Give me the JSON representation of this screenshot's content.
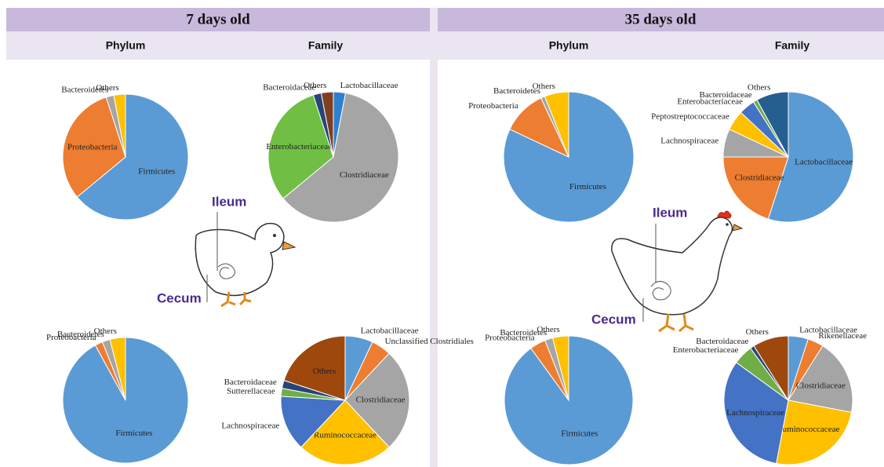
{
  "panels": [
    {
      "title": "7 days old",
      "columns": [
        "Phylum",
        "Family"
      ],
      "labels": [
        "Ileum",
        "Cecum"
      ]
    },
    {
      "title": "35 days old",
      "columns": [
        "Phylum",
        "Family"
      ],
      "labels": [
        "Ileum",
        "Cecum"
      ]
    }
  ],
  "chart_data": [
    {
      "type": "pie",
      "categories": [
        "Firmicutes",
        "Proteobacteria",
        "Bacteroidetes",
        "Others"
      ],
      "values": [
        64,
        31,
        2,
        3
      ],
      "colors": [
        "#5b9bd5",
        "#ed7d31",
        "#a5a5a5",
        "#ffc000"
      ]
    },
    {
      "type": "pie",
      "categories": [
        "Lactobacillaceae",
        "Clostridiaceae",
        "Enterobacteriaceae",
        "Bacteroidaceae",
        "Others"
      ],
      "values": [
        3,
        61,
        31,
        2,
        3
      ],
      "colors": [
        "#2f7fd0",
        "#a5a5a5",
        "#70bf44",
        "#264478",
        "#7f3f1f"
      ]
    },
    {
      "type": "pie",
      "categories": [
        "Firmicutes",
        "Proteobacteria",
        "Bacteroidetes",
        "Others"
      ],
      "values": [
        92,
        2,
        2,
        4
      ],
      "colors": [
        "#5b9bd5",
        "#ed7d31",
        "#a5a5a5",
        "#ffc000"
      ]
    },
    {
      "type": "pie",
      "categories": [
        "Lactobacillaceae",
        "Unclassified Clostridiales",
        "Clostridiaceae",
        "Ruminococcaceae",
        "Lachnospiraceae",
        "Sutterellaceae",
        "Bacteroidaceae",
        "Others"
      ],
      "values": [
        7,
        5,
        26,
        24,
        14,
        2,
        2,
        20
      ],
      "colors": [
        "#5b9bd5",
        "#ed7d31",
        "#a5a5a5",
        "#ffc000",
        "#4472c4",
        "#70ad47",
        "#264478",
        "#9e480e"
      ]
    },
    {
      "type": "pie",
      "categories": [
        "Firmicutes",
        "Proteobacteria",
        "Bacteroidetes",
        "Others"
      ],
      "values": [
        82,
        11,
        1,
        6
      ],
      "colors": [
        "#5b9bd5",
        "#ed7d31",
        "#a5a5a5",
        "#ffc000"
      ]
    },
    {
      "type": "pie",
      "categories": [
        "Lactobacillaceae",
        "Clostridiaceae",
        "Lachnospiraceae",
        "Peptostreptococcaceae",
        "Enterobacteriaceae",
        "Bacteroidaceae",
        "Others"
      ],
      "values": [
        55,
        20,
        7,
        5,
        4,
        1,
        8
      ],
      "colors": [
        "#5b9bd5",
        "#ed7d31",
        "#a5a5a5",
        "#ffc000",
        "#4472c4",
        "#70ad47",
        "#255e91"
      ]
    },
    {
      "type": "pie",
      "categories": [
        "Firmicutes",
        "Proteobacteria",
        "Bacteroidetes",
        "Others"
      ],
      "values": [
        90,
        4,
        2,
        4
      ],
      "colors": [
        "#5b9bd5",
        "#ed7d31",
        "#a5a5a5",
        "#ffc000"
      ]
    },
    {
      "type": "pie",
      "categories": [
        "Lactobacillaceae",
        "Rikenellaceae",
        "Clostridiaceae",
        "Ruminococcaceae",
        "Lachnospiraceae",
        "Enterobacteriaceae",
        "Bacteroidaceae",
        "Others"
      ],
      "values": [
        5,
        4,
        19,
        25,
        32,
        5,
        1,
        9
      ],
      "colors": [
        "#5b9bd5",
        "#ed7d31",
        "#a5a5a5",
        "#ffc000",
        "#4472c4",
        "#70ad47",
        "#264478",
        "#9e480e"
      ]
    }
  ]
}
